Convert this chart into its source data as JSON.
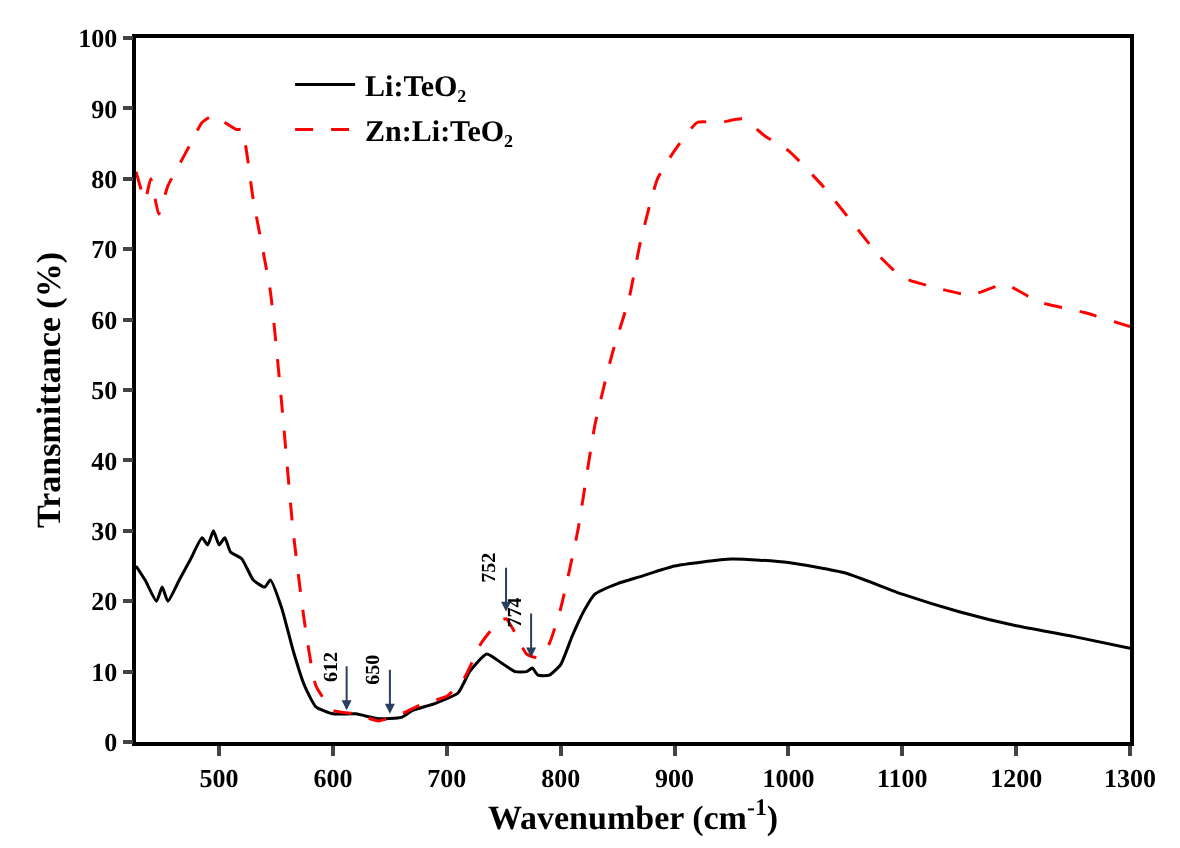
{
  "chart_data": {
    "type": "line",
    "xlabel": "Wavenumber (cm$^{-1}$)",
    "ylabel": "Transmittance (%)",
    "x": [
      427,
      435,
      445,
      450,
      455,
      465,
      475,
      485,
      490,
      495,
      500,
      505,
      510,
      520,
      530,
      540,
      545,
      555,
      565,
      575,
      585,
      600,
      620,
      640,
      660,
      670,
      690,
      710,
      720,
      735,
      750,
      760,
      770,
      775,
      780,
      790,
      800,
      810,
      820,
      830,
      850,
      870,
      900,
      950,
      1000,
      1050,
      1100,
      1150,
      1200,
      1250,
      1300
    ],
    "series": [
      {
        "name": "Li:TeO₂",
        "color": "#000000",
        "line_style": "solid",
        "values": [
          25,
          23,
          20,
          22,
          20,
          23,
          26,
          29,
          28,
          30,
          28,
          29,
          27,
          26,
          23,
          22,
          23,
          19,
          13,
          8,
          5,
          4,
          4,
          3.3,
          3.5,
          4.5,
          5.5,
          7,
          10,
          12.5,
          11,
          10,
          10,
          10.5,
          9.5,
          9.5,
          11,
          15,
          18.5,
          21,
          22.5,
          23.5,
          25,
          26,
          25.5,
          24,
          21,
          18.5,
          16.5,
          15,
          13.3
        ]
      },
      {
        "name": "Zn:Li:TeO₂",
        "color": "#ff0000",
        "line_style": "dashed",
        "x": [
          427,
          435,
          440,
          447,
          455,
          465,
          475,
          485,
          495,
          505,
          515,
          520,
          530,
          545,
          555,
          565,
          575,
          585,
          600,
          620,
          640,
          660,
          680,
          700,
          715,
          730,
          745,
          752,
          760,
          770,
          780,
          790,
          800,
          815,
          830,
          845,
          860,
          870,
          885,
          900,
          920,
          940,
          960,
          980,
          1000,
          1030,
          1060,
          1080,
          1100,
          1130,
          1160,
          1190,
          1220,
          1260,
          1300
        ],
        "values": [
          81,
          77,
          80,
          75,
          79,
          82,
          85,
          88,
          89,
          88,
          87,
          87,
          77,
          64,
          48,
          30,
          17,
          8,
          4.5,
          4,
          3,
          4,
          5.5,
          6.5,
          9,
          14,
          17,
          17.5,
          15.5,
          12.5,
          12,
          14,
          19,
          30,
          45,
          55,
          63,
          71,
          80,
          84,
          88,
          88,
          88.5,
          86,
          84,
          79,
          73,
          69,
          66,
          64.5,
          63.5,
          65,
          62.5,
          61,
          59
        ]
      }
    ],
    "annotations": [
      {
        "text": "612",
        "x": 612,
        "y": 4.5
      },
      {
        "text": "650",
        "x": 650,
        "y": 4
      },
      {
        "text": "752",
        "x": 752,
        "y": 18.5
      },
      {
        "text": "774",
        "x": 774,
        "y": 12
      }
    ],
    "xlim": [
      427,
      1300
    ],
    "xticks": [
      500,
      600,
      700,
      800,
      900,
      1000,
      1100,
      1200,
      1300
    ],
    "ylim": [
      0,
      100
    ],
    "yticks": [
      0,
      10,
      20,
      30,
      40,
      50,
      60,
      70,
      80,
      90,
      100
    ],
    "legend": "top left"
  }
}
